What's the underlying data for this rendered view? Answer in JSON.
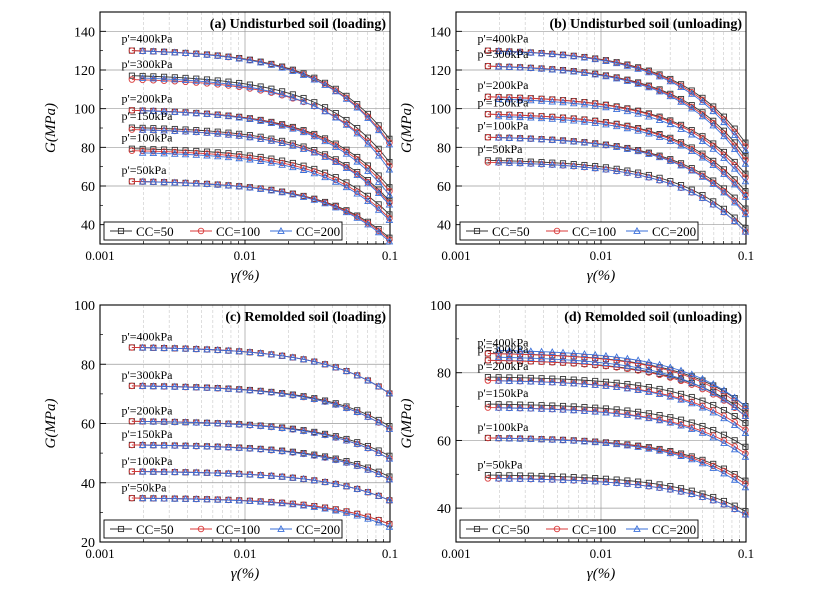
{
  "figure": {
    "legend_labels": [
      "CC=50",
      "CC=100",
      "CC=200"
    ],
    "series_styles": [
      {
        "name": "CC=50",
        "color": "#333333",
        "marker": "square"
      },
      {
        "name": "CC=100",
        "color": "#d93a3a",
        "marker": "circle"
      },
      {
        "name": "CC=200",
        "color": "#3a6fd9",
        "marker": "triangle"
      }
    ]
  },
  "chart_data": [
    {
      "id": "a",
      "type": "line",
      "title": "(a)  Undisturbed soil (loading)",
      "xlabel": "γ(%)",
      "ylabel": "G(MPa)",
      "xscale": "log",
      "xlim": [
        0.001,
        0.1
      ],
      "ylim": [
        30,
        150
      ],
      "xticks": [
        0.001,
        0.01,
        0.1
      ],
      "xticklabels": [
        "0.001",
        "0.01",
        "0.1"
      ],
      "yticks": [
        40,
        60,
        80,
        100,
        120,
        140
      ],
      "legend": "bottom",
      "curves": [
        {
          "label": "p'=400kPa",
          "g0": [
            131,
            131,
            131
          ],
          "g_end": [
            84,
            82,
            81
          ],
          "ref": 0.03
        },
        {
          "label": "p'=300kPa",
          "g0": [
            118,
            116,
            117
          ],
          "g_end": [
            72,
            70,
            68
          ],
          "ref": 0.025
        },
        {
          "label": "p'=200kPa",
          "g0": [
            100,
            100,
            100
          ],
          "g_end": [
            59,
            57,
            55
          ],
          "ref": 0.02
        },
        {
          "label": "p'=150kPa",
          "g0": [
            91,
            90,
            90
          ],
          "g_end": [
            52,
            51,
            50
          ],
          "ref": 0.015
        },
        {
          "label": "p'=100kPa",
          "g0": [
            80,
            79,
            78
          ],
          "g_end": [
            45,
            43,
            42
          ],
          "ref": 0.012
        },
        {
          "label": "p'=50kPa",
          "g0": [
            63,
            63,
            63
          ],
          "g_end": [
            33,
            32,
            31
          ],
          "ref": 0.01
        }
      ]
    },
    {
      "id": "b",
      "type": "line",
      "title": "(b)  Undisturbed soil (unloading)",
      "xlabel": "γ(%)",
      "ylabel": "G(MPa)",
      "xscale": "log",
      "xlim": [
        0.001,
        0.1
      ],
      "ylim": [
        30,
        150
      ],
      "xticks": [
        0.001,
        0.01,
        0.1
      ],
      "xticklabels": [
        "0.001",
        "0.01",
        "0.1"
      ],
      "yticks": [
        40,
        60,
        80,
        100,
        120,
        140
      ],
      "legend": "bottom",
      "curves": [
        {
          "label": "p'=400kPa",
          "g0": [
            131,
            131,
            131
          ],
          "g_end": [
            82,
            80,
            78
          ],
          "ref": 0.025
        },
        {
          "label": "p'=300kPa",
          "g0": [
            123,
            123,
            123
          ],
          "g_end": [
            75,
            73,
            71
          ],
          "ref": 0.025
        },
        {
          "label": "p'=200kPa",
          "g0": [
            107,
            107,
            106
          ],
          "g_end": [
            66,
            64,
            62
          ],
          "ref": 0.02
        },
        {
          "label": "p'=150kPa",
          "g0": [
            98,
            98,
            97
          ],
          "g_end": [
            57,
            55,
            54
          ],
          "ref": 0.018
        },
        {
          "label": "p'=100kPa",
          "g0": [
            86,
            86,
            86
          ],
          "g_end": [
            48,
            46,
            45
          ],
          "ref": 0.015
        },
        {
          "label": "p'=50kPa",
          "g0": [
            74,
            73,
            73
          ],
          "g_end": [
            38,
            36,
            36
          ],
          "ref": 0.012
        }
      ]
    },
    {
      "id": "c",
      "type": "line",
      "title": "(c)  Remolded soil (loading)",
      "xlabel": "γ(%)",
      "ylabel": "G(MPa)",
      "xscale": "log",
      "xlim": [
        0.001,
        0.1
      ],
      "ylim": [
        20,
        100
      ],
      "xticks": [
        0.001,
        0.01,
        0.1
      ],
      "xticklabels": [
        "0.001",
        "0.01",
        "0.1"
      ],
      "yticks": [
        20,
        40,
        60,
        80,
        100
      ],
      "legend": "bottom",
      "curves": [
        {
          "label": "p'=400kPa",
          "g0": [
            86,
            86,
            86
          ],
          "g_end": [
            70,
            70,
            70
          ],
          "ref": 0.05
        },
        {
          "label": "p'=300kPa",
          "g0": [
            73,
            73,
            73
          ],
          "g_end": [
            59,
            58,
            58
          ],
          "ref": 0.05
        },
        {
          "label": "p'=200kPa",
          "g0": [
            61,
            61,
            61
          ],
          "g_end": [
            49,
            48,
            48
          ],
          "ref": 0.05
        },
        {
          "label": "p'=150kPa",
          "g0": [
            53,
            53,
            53
          ],
          "g_end": [
            42,
            41,
            41
          ],
          "ref": 0.05
        },
        {
          "label": "p'=100kPa",
          "g0": [
            44,
            44,
            44
          ],
          "g_end": [
            34,
            34,
            34
          ],
          "ref": 0.05
        },
        {
          "label": "p'=50kPa",
          "g0": [
            35,
            35,
            35
          ],
          "g_end": [
            26,
            26,
            25
          ],
          "ref": 0.05
        }
      ]
    },
    {
      "id": "d",
      "type": "line",
      "title": "(d)  Remolded soil (unloading)",
      "xlabel": "γ(%)",
      "ylabel": "G(MPa)",
      "xscale": "log",
      "xlim": [
        0.001,
        0.1
      ],
      "ylim": [
        30,
        100
      ],
      "xticks": [
        0.001,
        0.01,
        0.1
      ],
      "xticklabels": [
        "0.001",
        "0.01",
        "0.1"
      ],
      "yticks": [
        40,
        60,
        80,
        100
      ],
      "legend": "bottom",
      "curves": [
        {
          "label": "p'=400kPa",
          "g0": [
            86,
            86,
            87
          ],
          "g_end": [
            70,
            69,
            70
          ],
          "ref": 0.04
        },
        {
          "label": "p'=300kPa",
          "g0": [
            84,
            84,
            85
          ],
          "g_end": [
            68,
            67,
            67
          ],
          "ref": 0.04
        },
        {
          "label": "p'=200kPa",
          "g0": [
            79,
            78,
            78
          ],
          "g_end": [
            65,
            63,
            62
          ],
          "ref": 0.04
        },
        {
          "label": "p'=150kPa",
          "g0": [
            71,
            70,
            70
          ],
          "g_end": [
            58,
            56,
            55
          ],
          "ref": 0.04
        },
        {
          "label": "p'=100kPa",
          "g0": [
            61,
            61,
            61
          ],
          "g_end": [
            48,
            47,
            46
          ],
          "ref": 0.04
        },
        {
          "label": "p'=50kPa",
          "g0": [
            50,
            49,
            49
          ],
          "g_end": [
            39,
            38,
            38
          ],
          "ref": 0.04
        }
      ]
    }
  ]
}
